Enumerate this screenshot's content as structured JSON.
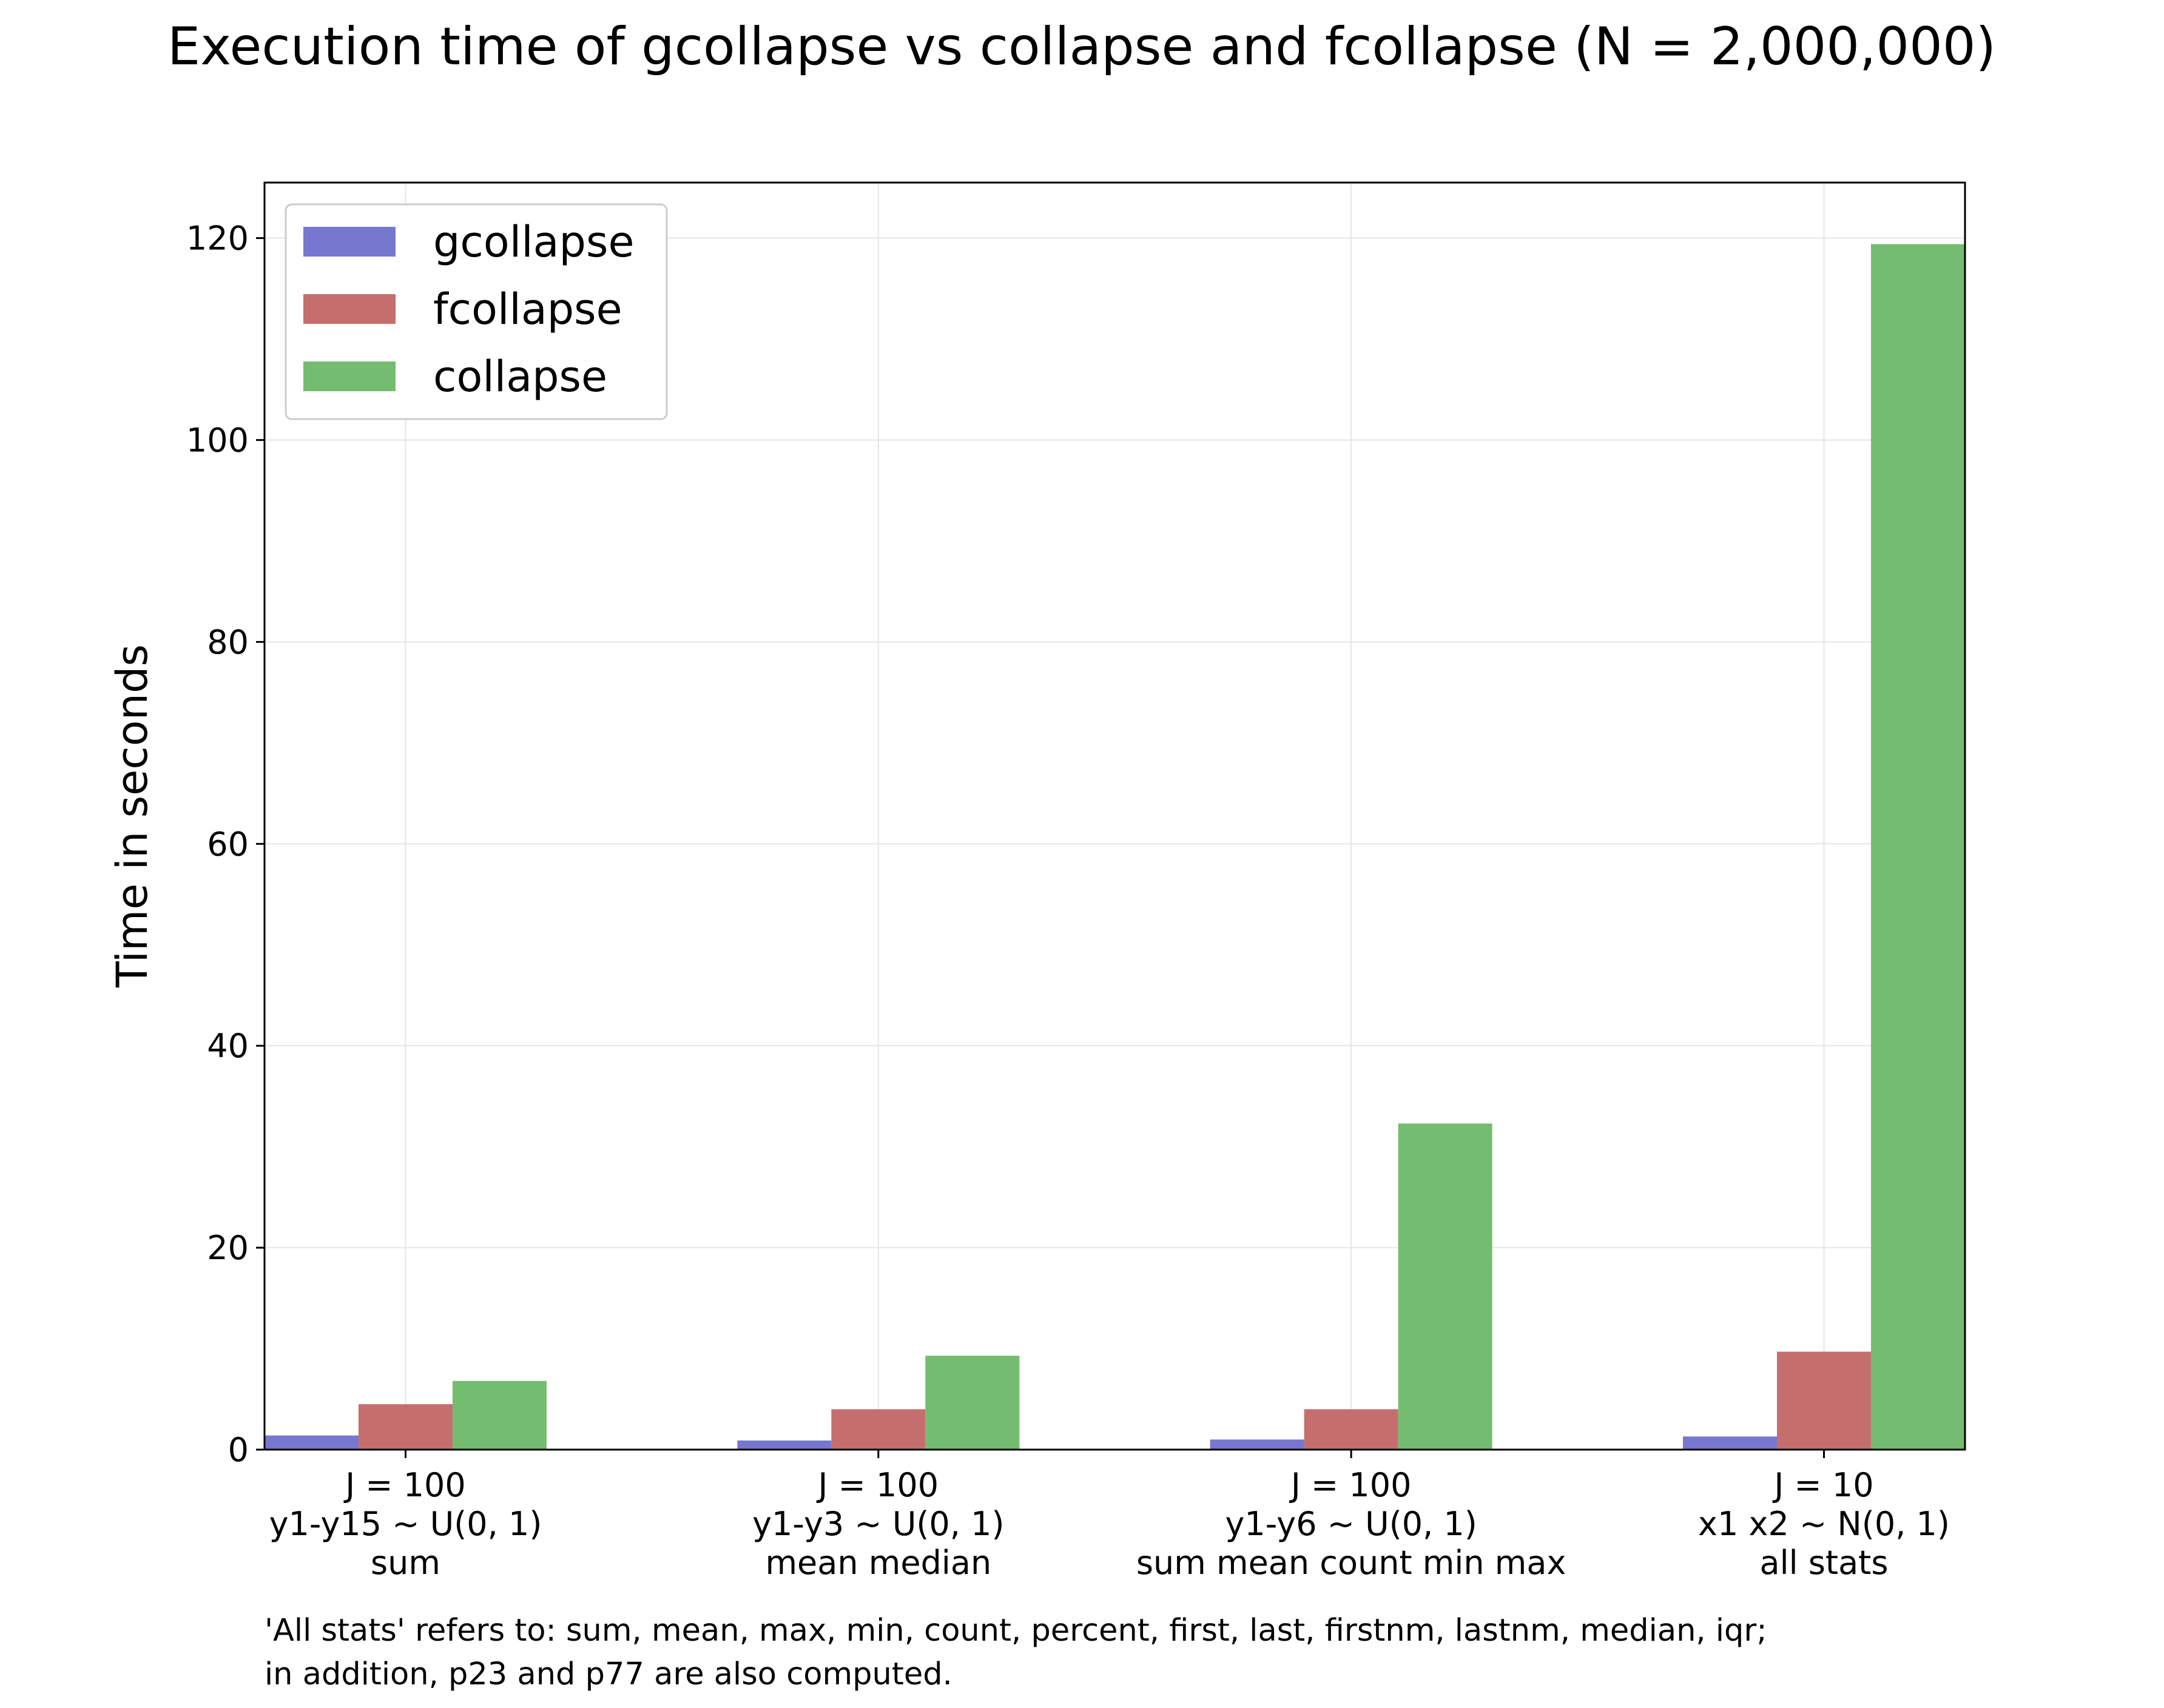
{
  "chart_data": {
    "type": "bar",
    "title": "Execution time of gcollapse vs collapse and fcollapse (N = 2,000,000)",
    "xlabel": "",
    "ylabel": "Time in seconds",
    "ylim": [
      0,
      125.5
    ],
    "yticks": [
      0,
      20,
      40,
      60,
      80,
      100,
      120
    ],
    "grid": true,
    "legend_position": "top-left",
    "categories": [
      [
        "J = 100",
        "y1-y15 ~ U(0, 1)",
        "sum"
      ],
      [
        "J = 100",
        "y1-y3 ~ U(0, 1)",
        "mean median"
      ],
      [
        "J = 100",
        "y1-y6 ~ U(0, 1)",
        "sum mean count min max"
      ],
      [
        "J = 10",
        "x1 x2 ~ N(0, 1)",
        "all stats"
      ]
    ],
    "series": [
      {
        "name": "gcollapse",
        "color": "#7677cf",
        "values": [
          1.4,
          0.9,
          1.0,
          1.3
        ]
      },
      {
        "name": "fcollapse",
        "color": "#c56e6e",
        "values": [
          4.5,
          4.0,
          4.0,
          9.7
        ]
      },
      {
        "name": "collapse",
        "color": "#74bd70",
        "values": [
          6.8,
          9.3,
          32.3,
          119.4
        ]
      }
    ]
  },
  "footnote": {
    "line1": "'All stats' refers to: sum, mean, max, min, count, percent, first, last, firstnm, lastnm, median, iqr;",
    "line2": "in addition, p23 and p77 are also computed."
  }
}
